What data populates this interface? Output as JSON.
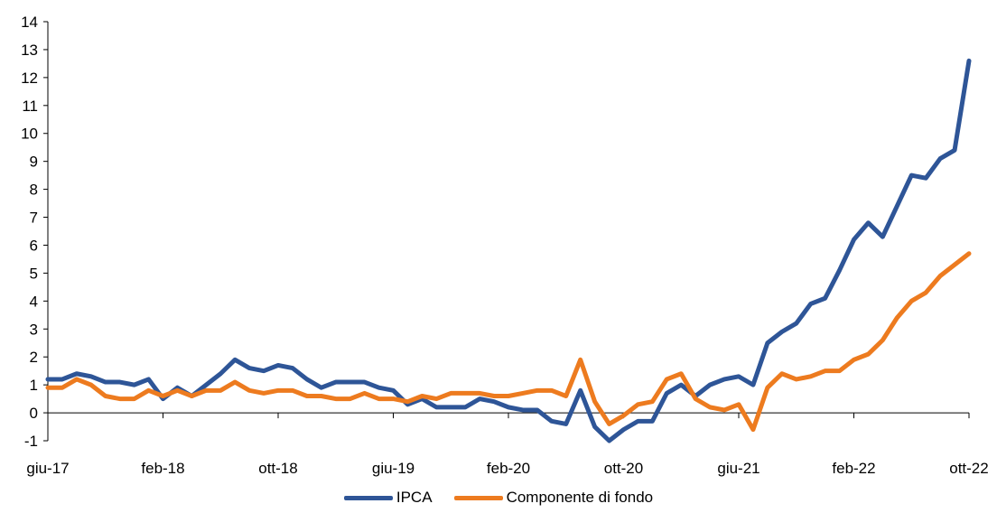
{
  "chart_data": {
    "type": "line",
    "title": "",
    "xlabel": "",
    "ylabel": "",
    "ylim": [
      -1,
      14
    ],
    "yticks": [
      -1,
      0,
      1,
      2,
      3,
      4,
      5,
      6,
      7,
      8,
      9,
      10,
      11,
      12,
      13,
      14
    ],
    "x_tick_labels": [
      "giu-17",
      "feb-18",
      "ott-18",
      "giu-19",
      "feb-20",
      "ott-20",
      "giu-21",
      "feb-22",
      "ott-22"
    ],
    "x_tick_every": 8,
    "x": [
      "giu-17",
      "lug-17",
      "ago-17",
      "set-17",
      "ott-17",
      "nov-17",
      "dic-17",
      "gen-18",
      "feb-18",
      "mar-18",
      "apr-18",
      "mag-18",
      "giu-18",
      "lug-18",
      "ago-18",
      "set-18",
      "ott-18",
      "nov-18",
      "dic-18",
      "gen-19",
      "feb-19",
      "mar-19",
      "apr-19",
      "mag-19",
      "giu-19",
      "lug-19",
      "ago-19",
      "set-19",
      "ott-19",
      "nov-19",
      "dic-19",
      "gen-20",
      "feb-20",
      "mar-20",
      "apr-20",
      "mag-20",
      "giu-20",
      "lug-20",
      "ago-20",
      "set-20",
      "ott-20",
      "nov-20",
      "dic-20",
      "gen-21",
      "feb-21",
      "mar-21",
      "apr-21",
      "mag-21",
      "giu-21",
      "lug-21",
      "ago-21",
      "set-21",
      "ott-21",
      "nov-21",
      "dic-21",
      "gen-22",
      "feb-22",
      "mar-22",
      "apr-22",
      "mag-22",
      "giu-22",
      "lug-22",
      "ago-22",
      "set-22",
      "ott-22"
    ],
    "series": [
      {
        "name": "IPCA",
        "color": "#2e5597",
        "values": [
          1.2,
          1.2,
          1.4,
          1.3,
          1.1,
          1.1,
          1.0,
          1.2,
          0.5,
          0.9,
          0.6,
          1.0,
          1.4,
          1.9,
          1.6,
          1.5,
          1.7,
          1.6,
          1.2,
          0.9,
          1.1,
          1.1,
          1.1,
          0.9,
          0.8,
          0.3,
          0.5,
          0.2,
          0.2,
          0.2,
          0.5,
          0.4,
          0.2,
          0.1,
          0.1,
          -0.3,
          -0.4,
          0.8,
          -0.5,
          -1.0,
          -0.6,
          -0.3,
          -0.3,
          0.7,
          1.0,
          0.6,
          1.0,
          1.2,
          1.3,
          1.0,
          2.5,
          2.9,
          3.2,
          3.9,
          4.1,
          5.1,
          6.2,
          6.8,
          6.3,
          7.4,
          8.5,
          8.4,
          9.1,
          9.4,
          12.6
        ]
      },
      {
        "name": "Componente di fondo",
        "color": "#ed7b1f",
        "values": [
          0.9,
          0.9,
          1.2,
          1.0,
          0.6,
          0.5,
          0.5,
          0.8,
          0.6,
          0.8,
          0.6,
          0.8,
          0.8,
          1.1,
          0.8,
          0.7,
          0.8,
          0.8,
          0.6,
          0.6,
          0.5,
          0.5,
          0.7,
          0.5,
          0.5,
          0.4,
          0.6,
          0.5,
          0.7,
          0.7,
          0.7,
          0.6,
          0.6,
          0.7,
          0.8,
          0.8,
          0.6,
          1.9,
          0.4,
          -0.4,
          -0.1,
          0.3,
          0.4,
          1.2,
          1.4,
          0.5,
          0.2,
          0.1,
          0.3,
          -0.6,
          0.9,
          1.4,
          1.2,
          1.3,
          1.5,
          1.5,
          1.9,
          2.1,
          2.6,
          3.4,
          4.0,
          4.3,
          4.9,
          5.3,
          5.7
        ]
      }
    ],
    "legend": "bottom-center",
    "grid": false
  }
}
